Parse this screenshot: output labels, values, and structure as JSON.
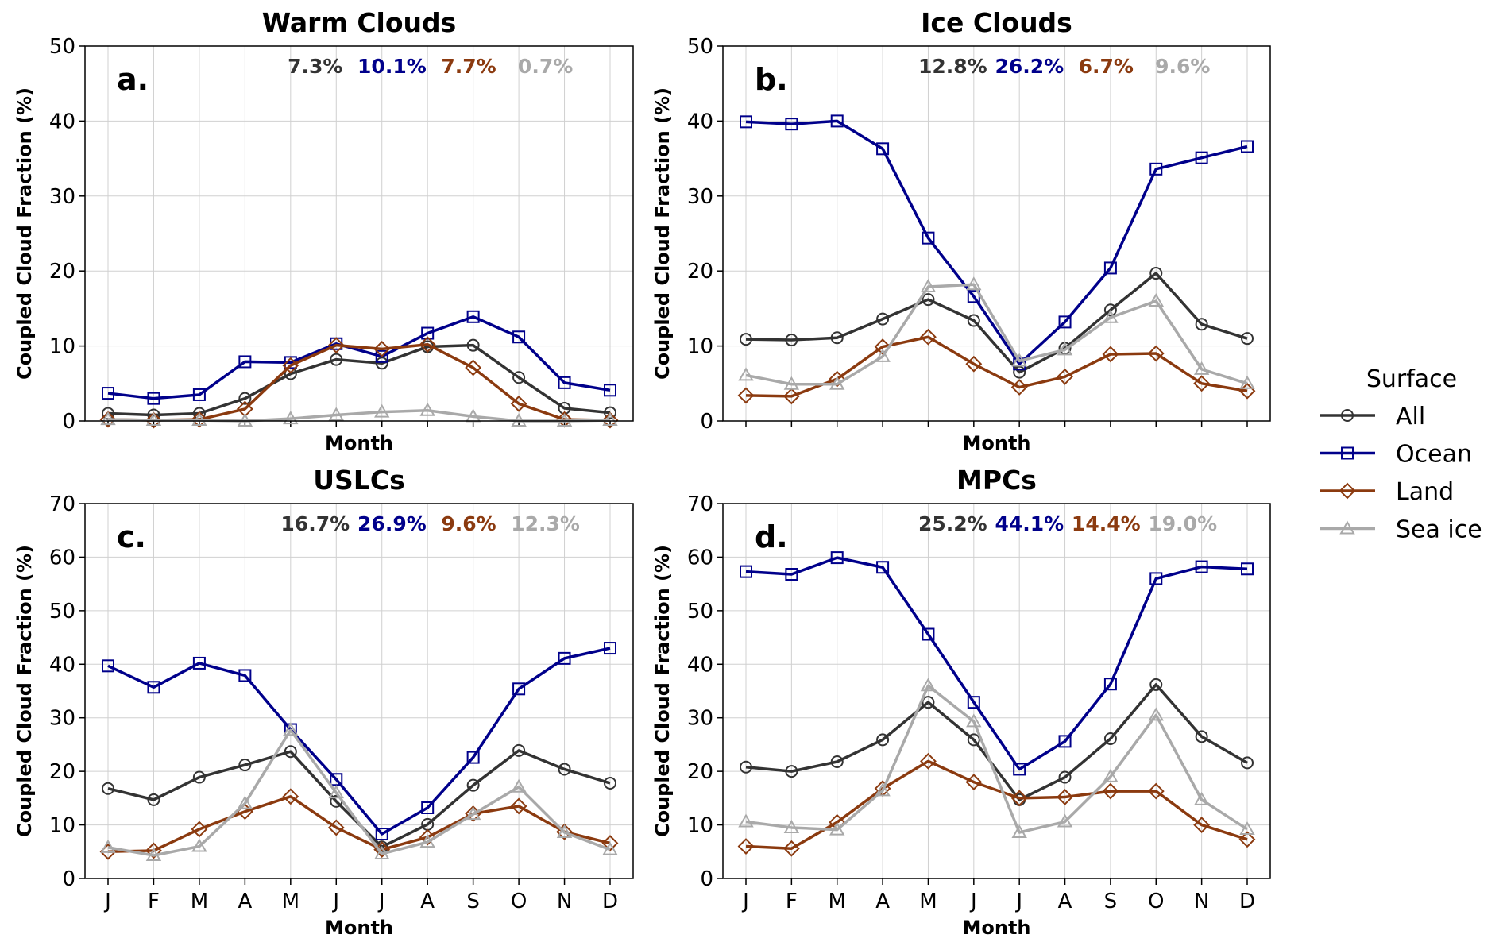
{
  "chart_data": [
    {
      "type": "line",
      "panel_label": "a.",
      "title": "Warm Clouds",
      "xlabel": "Month",
      "ylabel": "Coupled Cloud Fraction (%)",
      "ylim": [
        0,
        50
      ],
      "yticks": [
        0,
        10,
        20,
        30,
        40,
        50
      ],
      "show_xticklabels": false,
      "annotations": [
        "7.3%",
        "10.1%",
        "7.7%",
        "0.7%"
      ],
      "series": [
        {
          "name": "All",
          "values": [
            1.0,
            0.8,
            1.0,
            3.0,
            6.3,
            8.2,
            7.7,
            9.9,
            10.1,
            5.8,
            1.7,
            1.1
          ]
        },
        {
          "name": "Ocean",
          "values": [
            3.7,
            3.0,
            3.5,
            7.9,
            7.8,
            10.3,
            8.6,
            11.7,
            13.9,
            11.2,
            5.1,
            4.1
          ]
        },
        {
          "name": "Land",
          "values": [
            0.2,
            0.1,
            0.2,
            1.6,
            7.4,
            10.1,
            9.6,
            10.2,
            7.1,
            2.3,
            0.2,
            0.1
          ]
        },
        {
          "name": "Sea ice",
          "values": [
            0.2,
            0.1,
            0.1,
            0.0,
            0.3,
            0.8,
            1.2,
            1.4,
            0.6,
            0.0,
            0.0,
            0.1
          ]
        }
      ]
    },
    {
      "type": "line",
      "panel_label": "b.",
      "title": "Ice Clouds",
      "xlabel": "Month",
      "ylabel": "Coupled Cloud Fraction (%)",
      "ylim": [
        0,
        50
      ],
      "yticks": [
        0,
        10,
        20,
        30,
        40,
        50
      ],
      "show_xticklabels": false,
      "annotations": [
        "12.8%",
        "26.2%",
        "6.7%",
        "9.6%"
      ],
      "series": [
        {
          "name": "All",
          "values": [
            10.9,
            10.8,
            11.1,
            13.6,
            16.2,
            13.4,
            6.5,
            9.7,
            14.8,
            19.7,
            12.9,
            11.0
          ]
        },
        {
          "name": "Ocean",
          "values": [
            39.9,
            39.6,
            40.0,
            36.3,
            24.4,
            16.6,
            7.6,
            13.2,
            20.4,
            33.6,
            35.1,
            36.6
          ]
        },
        {
          "name": "Land",
          "values": [
            3.4,
            3.3,
            5.6,
            9.9,
            11.2,
            7.6,
            4.5,
            5.9,
            8.9,
            9.0,
            5.0,
            4.0
          ]
        },
        {
          "name": "Sea ice",
          "values": [
            6.1,
            4.9,
            4.9,
            8.6,
            17.9,
            18.2,
            8.0,
            9.5,
            13.8,
            16.0,
            6.9,
            5.0
          ]
        }
      ]
    },
    {
      "type": "line",
      "panel_label": "c.",
      "title": "USLCs",
      "xlabel": "Month",
      "ylabel": "Coupled Cloud Fraction (%)",
      "ylim": [
        0,
        70
      ],
      "yticks": [
        0,
        10,
        20,
        30,
        40,
        50,
        60,
        70
      ],
      "show_xticklabels": true,
      "annotations": [
        "16.7%",
        "26.9%",
        "9.6%",
        "12.3%"
      ],
      "series": [
        {
          "name": "All",
          "values": [
            16.8,
            14.7,
            18.9,
            21.2,
            23.7,
            14.4,
            5.9,
            10.1,
            17.4,
            23.9,
            20.4,
            17.8
          ]
        },
        {
          "name": "Ocean",
          "values": [
            39.7,
            35.7,
            40.2,
            37.9,
            27.8,
            18.5,
            8.3,
            13.2,
            22.6,
            35.4,
            41.1,
            43.0
          ]
        },
        {
          "name": "Land",
          "values": [
            5.0,
            5.2,
            9.2,
            12.5,
            15.3,
            9.5,
            5.4,
            7.7,
            12.1,
            13.5,
            8.7,
            6.6
          ]
        },
        {
          "name": "Sea ice",
          "values": [
            5.8,
            4.3,
            6.0,
            14.0,
            27.7,
            16.0,
            4.6,
            6.8,
            12.0,
            17.1,
            8.6,
            5.4
          ]
        }
      ]
    },
    {
      "type": "line",
      "panel_label": "d.",
      "title": "MPCs",
      "xlabel": "Month",
      "ylabel": "Coupled Cloud Fraction (%)",
      "ylim": [
        0,
        70
      ],
      "yticks": [
        0,
        10,
        20,
        30,
        40,
        50,
        60,
        70
      ],
      "show_xticklabels": true,
      "annotations": [
        "25.2%",
        "44.1%",
        "14.4%",
        "19.0%"
      ],
      "series": [
        {
          "name": "All",
          "values": [
            20.8,
            20.0,
            21.8,
            25.9,
            32.9,
            25.9,
            14.7,
            18.9,
            26.1,
            36.2,
            26.5,
            21.6
          ]
        },
        {
          "name": "Ocean",
          "values": [
            57.3,
            56.8,
            59.9,
            58.1,
            45.6,
            32.9,
            20.4,
            25.6,
            36.3,
            56.0,
            58.2,
            57.8
          ]
        },
        {
          "name": "Land",
          "values": [
            6.0,
            5.6,
            10.5,
            16.8,
            21.9,
            18.0,
            15.0,
            15.2,
            16.3,
            16.3,
            10.0,
            7.3
          ]
        },
        {
          "name": "Sea ice",
          "values": [
            10.6,
            9.5,
            9.1,
            16.4,
            36.0,
            29.3,
            8.6,
            10.6,
            19.0,
            30.5,
            14.7,
            9.2
          ]
        }
      ]
    }
  ],
  "months": [
    "J",
    "F",
    "M",
    "A",
    "M",
    "J",
    "J",
    "A",
    "S",
    "O",
    "N",
    "D"
  ],
  "legend": {
    "title": "Surface",
    "placement": "right",
    "entries": [
      {
        "name": "All",
        "color": "#333333",
        "marker": "circle"
      },
      {
        "name": "Ocean",
        "color": "#00008B",
        "marker": "square"
      },
      {
        "name": "Land",
        "color": "#8B3A0F",
        "marker": "diamond"
      },
      {
        "name": "Sea ice",
        "color": "#A9A9A9",
        "marker": "triangle"
      }
    ]
  }
}
